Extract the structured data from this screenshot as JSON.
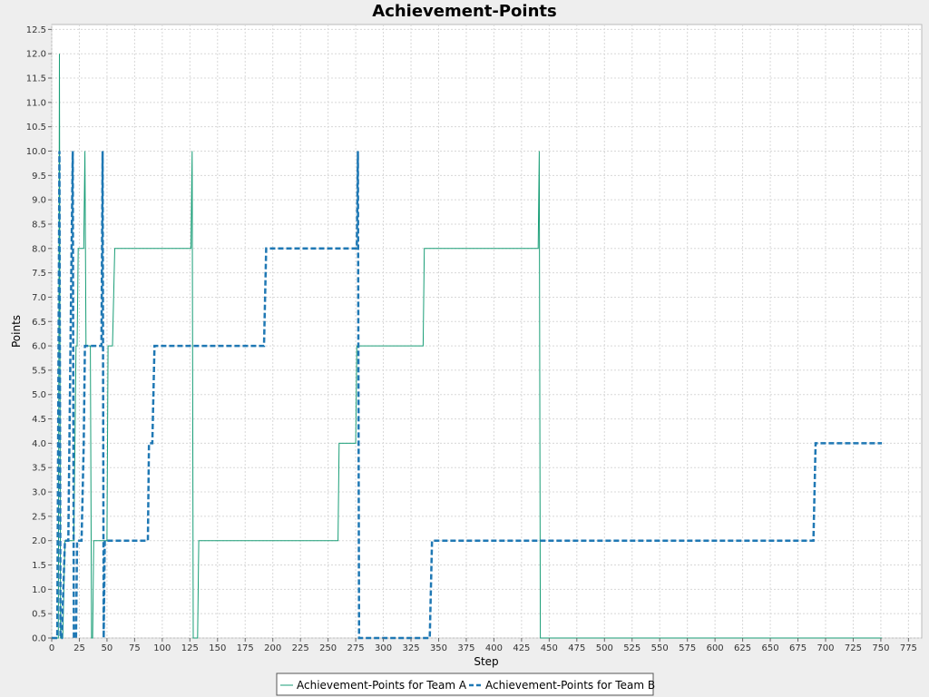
{
  "chart_data": {
    "type": "line",
    "title": "Achievement-Points",
    "xlabel": "Step",
    "ylabel": "Points",
    "xlim": [
      0,
      787
    ],
    "ylim": [
      0,
      12.6
    ],
    "x_ticks": [
      0,
      25,
      50,
      75,
      100,
      125,
      150,
      175,
      200,
      225,
      250,
      275,
      300,
      325,
      350,
      375,
      400,
      425,
      450,
      475,
      500,
      525,
      550,
      575,
      600,
      625,
      650,
      675,
      700,
      725,
      750,
      775
    ],
    "y_ticks": [
      "0.0",
      "0.5",
      "1.0",
      "1.5",
      "2.0",
      "2.5",
      "3.0",
      "3.5",
      "4.0",
      "4.5",
      "5.0",
      "5.5",
      "6.0",
      "6.5",
      "7.0",
      "7.5",
      "8.0",
      "8.5",
      "9.0",
      "9.5",
      "10.0",
      "10.5",
      "11.0",
      "11.5",
      "12.0",
      "12.5"
    ],
    "grid": true,
    "legend_position": "bottom",
    "colors": {
      "team_a": "#1a9e77",
      "team_b": "#1f78b4",
      "plot_background": "#ffffff",
      "grid": "#d8d8d8"
    },
    "series": [
      {
        "name": "Achievement-Points for Team A",
        "style": "solid",
        "points": [
          [
            0,
            0
          ],
          [
            6,
            0
          ],
          [
            7,
            12
          ],
          [
            8,
            0
          ],
          [
            10,
            0
          ],
          [
            12,
            2
          ],
          [
            20,
            2
          ],
          [
            22,
            6
          ],
          [
            23,
            6
          ],
          [
            24,
            8
          ],
          [
            29,
            8
          ],
          [
            30,
            10
          ],
          [
            31,
            6
          ],
          [
            35,
            6
          ],
          [
            36,
            0
          ],
          [
            37,
            0
          ],
          [
            38,
            2
          ],
          [
            50,
            2
          ],
          [
            51,
            6
          ],
          [
            55,
            6
          ],
          [
            57,
            8
          ],
          [
            126,
            8
          ],
          [
            127,
            10
          ],
          [
            128,
            0
          ],
          [
            132,
            0
          ],
          [
            133,
            2
          ],
          [
            259,
            2
          ],
          [
            260,
            4
          ],
          [
            275,
            4
          ],
          [
            276,
            6
          ],
          [
            336,
            6
          ],
          [
            337,
            8
          ],
          [
            440,
            8
          ],
          [
            441,
            10
          ],
          [
            442,
            0
          ],
          [
            751,
            0
          ]
        ]
      },
      {
        "name": "Achievement-Points for Team B",
        "style": "dashed",
        "points": [
          [
            0,
            0
          ],
          [
            5,
            0
          ],
          [
            7,
            10
          ],
          [
            8,
            0
          ],
          [
            9,
            0
          ],
          [
            12,
            2
          ],
          [
            15,
            2
          ],
          [
            17,
            6
          ],
          [
            18,
            8
          ],
          [
            19,
            10
          ],
          [
            20,
            0
          ],
          [
            22,
            0
          ],
          [
            23,
            2
          ],
          [
            27,
            2
          ],
          [
            29,
            4
          ],
          [
            30,
            6
          ],
          [
            45,
            6
          ],
          [
            46,
            10
          ],
          [
            47,
            0
          ],
          [
            48,
            2
          ],
          [
            87,
            2
          ],
          [
            88,
            4
          ],
          [
            91,
            4
          ],
          [
            93,
            6
          ],
          [
            192,
            6
          ],
          [
            194,
            8
          ],
          [
            276,
            8
          ],
          [
            277,
            10
          ],
          [
            278,
            0
          ],
          [
            342,
            0
          ],
          [
            344,
            2
          ],
          [
            689,
            2
          ],
          [
            691,
            4
          ],
          [
            751,
            4
          ]
        ]
      }
    ]
  }
}
